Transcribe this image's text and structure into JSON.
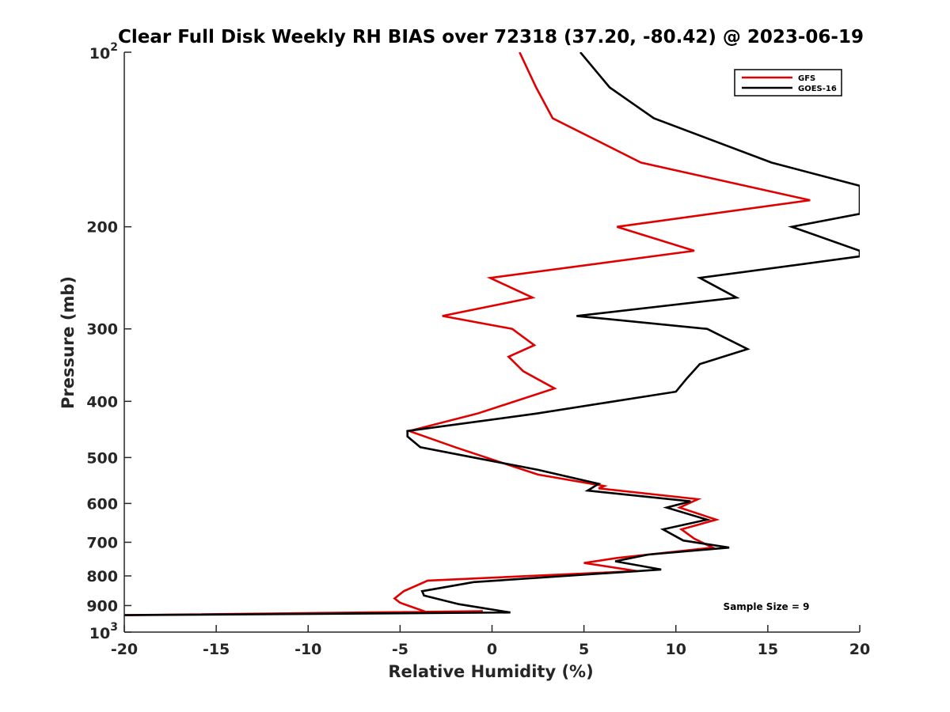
{
  "chart_data": {
    "type": "line",
    "title": "Clear Full Disk Weekly RH BIAS over 72318 (37.20, -80.42) @ 2023-06-19",
    "xlabel": "Relative Humidity (%)",
    "ylabel": "Pressure (mb)",
    "xlim": [
      -20,
      20
    ],
    "ylim": [
      100,
      1000
    ],
    "y_scale": "log",
    "y_reversed": true,
    "x_ticks": [
      -20,
      -15,
      -10,
      -5,
      0,
      5,
      10,
      15,
      20
    ],
    "x_tick_labels": [
      "-20",
      "-15",
      "-10",
      "-5",
      "0",
      "5",
      "10",
      "15",
      "20"
    ],
    "y_ticks": [
      200,
      300,
      400,
      500,
      600,
      700,
      800,
      900
    ],
    "y_tick_labels": [
      "200",
      "300",
      "400",
      "500",
      "600",
      "700",
      "800",
      "900"
    ],
    "y_end_labels": {
      "top": {
        "base": "10",
        "exp": "2"
      },
      "bottom": {
        "base": "10",
        "exp": "3"
      }
    },
    "grid": false,
    "legend_position": "top-right",
    "annotation": "Sample Size = 9",
    "series": [
      {
        "name": "GFS",
        "color": "#e00000",
        "points": [
          [
            1.5,
            100
          ],
          [
            2.4,
            115
          ],
          [
            3.3,
            130
          ],
          [
            8.1,
            155
          ],
          [
            17.3,
            180
          ],
          [
            6.8,
            200
          ],
          [
            11.0,
            220
          ],
          [
            -0.1,
            245
          ],
          [
            2.2,
            265
          ],
          [
            -2.7,
            285
          ],
          [
            1.1,
            300
          ],
          [
            2.3,
            320
          ],
          [
            0.9,
            335
          ],
          [
            1.7,
            355
          ],
          [
            3.4,
            380
          ],
          [
            -0.8,
            420
          ],
          [
            -4.5,
            450
          ],
          [
            -2.0,
            480
          ],
          [
            0.5,
            510
          ],
          [
            2.5,
            535
          ],
          [
            6.1,
            560
          ],
          [
            5.8,
            565
          ],
          [
            11.2,
            590
          ],
          [
            10.2,
            610
          ],
          [
            12.2,
            640
          ],
          [
            10.3,
            665
          ],
          [
            11.0,
            690
          ],
          [
            12.0,
            715
          ],
          [
            6.8,
            745
          ],
          [
            5.0,
            760
          ],
          [
            7.9,
            785
          ],
          [
            -3.5,
            815
          ],
          [
            -4.8,
            850
          ],
          [
            -5.3,
            875
          ],
          [
            -5.0,
            890
          ],
          [
            -3.5,
            925
          ],
          [
            -0.5,
            920
          ],
          [
            -20.0,
            935
          ]
        ]
      },
      {
        "name": "GOES-16",
        "color": "#000000",
        "points": [
          [
            4.8,
            100
          ],
          [
            6.4,
            115
          ],
          [
            8.8,
            130
          ],
          [
            15.2,
            155
          ],
          [
            20.0,
            170
          ],
          [
            20.0,
            190
          ],
          [
            16.3,
            200
          ],
          [
            20.0,
            220
          ],
          [
            20.0,
            225
          ],
          [
            11.3,
            245
          ],
          [
            13.3,
            265
          ],
          [
            4.6,
            285
          ],
          [
            11.7,
            300
          ],
          [
            13.9,
            325
          ],
          [
            11.3,
            345
          ],
          [
            10.6,
            365
          ],
          [
            10.0,
            385
          ],
          [
            2.4,
            420
          ],
          [
            -4.6,
            450
          ],
          [
            -4.6,
            460
          ],
          [
            -3.9,
            480
          ],
          [
            -1.0,
            500
          ],
          [
            2.5,
            525
          ],
          [
            5.8,
            555
          ],
          [
            5.2,
            570
          ],
          [
            10.8,
            595
          ],
          [
            9.5,
            610
          ],
          [
            11.7,
            640
          ],
          [
            9.3,
            665
          ],
          [
            10.4,
            695
          ],
          [
            12.9,
            715
          ],
          [
            8.5,
            735
          ],
          [
            6.7,
            755
          ],
          [
            9.2,
            780
          ],
          [
            -1.0,
            820
          ],
          [
            -3.8,
            850
          ],
          [
            -3.7,
            865
          ],
          [
            -1.8,
            895
          ],
          [
            1.0,
            925
          ],
          [
            -20.0,
            935
          ]
        ]
      }
    ]
  }
}
